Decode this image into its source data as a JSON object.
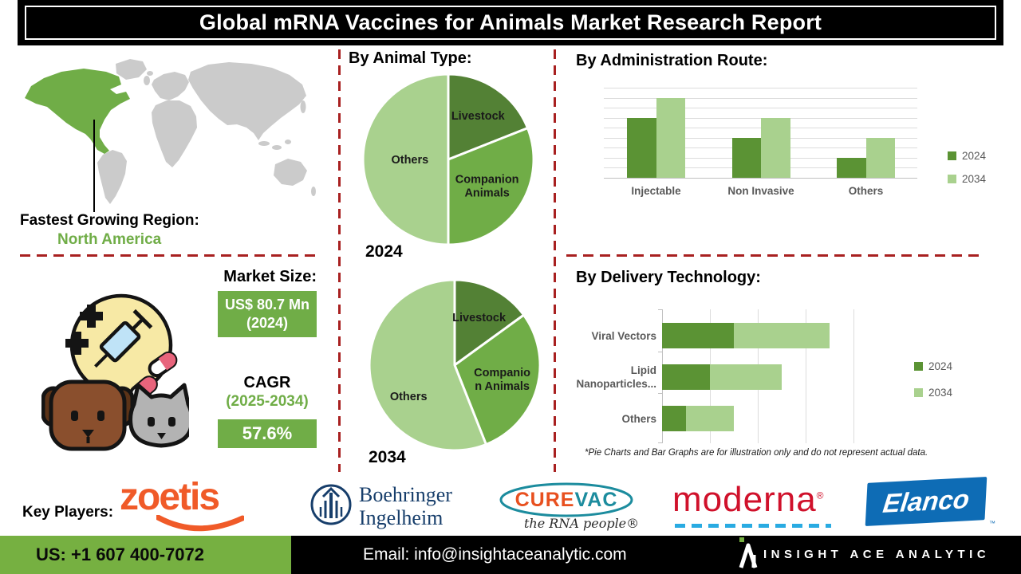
{
  "title": "Global mRNA Vaccines for Animals Market Research Report",
  "map": {
    "highlight_region": "North America",
    "caption_label": "Fastest Growing Region:",
    "caption_value": "North America"
  },
  "market": {
    "label": "Market Size:",
    "size_value": "US$ 80.7 Mn",
    "size_year": "(2024)",
    "cagr_label": "CAGR",
    "cagr_period": "(2025-2034)",
    "cagr_value": "57.6%"
  },
  "sections": {
    "animal_type": "By Animal Type:",
    "admin_route": "By Administration Route:",
    "delivery_tech": "By Delivery Technology:"
  },
  "footnote": "*Pie Charts and Bar Graphs are for illustration only and do not represent actual data.",
  "key_players": {
    "label": "Key Players:",
    "companies": [
      "Zoetis",
      "Boehringer Ingelheim",
      "CureVac",
      "Moderna",
      "Elanco"
    ]
  },
  "logos": {
    "zoetis": "zoetis",
    "boehringer_line1": "Boehringer",
    "boehringer_line2": "Ingelheim",
    "curevac_part1": "CURE",
    "curevac_part2": "VAC",
    "curevac_tagline": "the RNA people®",
    "moderna": "moderna",
    "moderna_reg": "®",
    "elanco": "Elanco",
    "elanco_tm": "™"
  },
  "footer": {
    "phone": "US: +1 607 400-7072",
    "email": "Email: info@insightaceanalytic.com",
    "brand": "INSIGHT ACE ANALYTIC"
  },
  "colors": {
    "accent_green": "#70AD47",
    "dark_green": "#5B9334",
    "pie_dark_green": "#538135",
    "light_green": "#A9D18E",
    "footer_green": "#76B041",
    "dashed_red": "#A82020",
    "zoetis_orange": "#F05A28",
    "boehringer_navy": "#173E6B",
    "curevac_orange": "#E8501F",
    "curevac_teal": "#1C8C9E",
    "moderna_red": "#D0112B",
    "moderna_cyan": "#29ABE2",
    "elanco_blue": "#0E6CB5"
  },
  "chart_data": [
    {
      "id": "animal_type_2024",
      "type": "pie",
      "title": "2024",
      "labels": [
        "Livestock",
        "Companion Animals",
        "Others"
      ],
      "values": [
        19,
        31,
        50
      ],
      "colors": [
        "#538135",
        "#70AD47",
        "#A9D18E"
      ],
      "label_display": [
        [
          "Livestock"
        ],
        [
          "Companion",
          "Animals"
        ],
        [
          "Others"
        ]
      ]
    },
    {
      "id": "animal_type_2034",
      "type": "pie",
      "title": "2034",
      "labels": [
        "Livestock",
        "Companion Animals",
        "Others"
      ],
      "values": [
        15,
        29,
        56
      ],
      "colors": [
        "#538135",
        "#70AD47",
        "#A9D18E"
      ],
      "label_display": [
        [
          "Livestock"
        ],
        [
          "Companio",
          "n Animals"
        ],
        [
          "Others"
        ]
      ]
    },
    {
      "id": "administration_route",
      "type": "bar",
      "title": "By Administration Route:",
      "categories": [
        "Injectable",
        "Non Invasive",
        "Others"
      ],
      "series": [
        {
          "name": "2024",
          "color": "#5B9334",
          "values": [
            30,
            20,
            10
          ]
        },
        {
          "name": "2034",
          "color": "#A9D18E",
          "values": [
            40,
            30,
            20
          ]
        }
      ],
      "ylim": [
        0,
        45
      ],
      "grid": true,
      "legend_position": "right"
    },
    {
      "id": "delivery_technology",
      "type": "bar-horizontal-stacked",
      "title": "By Delivery Technology:",
      "categories": [
        "Viral Vectors",
        "Lipid Nanoparticles...",
        "Others"
      ],
      "category_display": [
        [
          "Viral Vectors"
        ],
        [
          "Lipid",
          "Nanoparticles..."
        ],
        [
          "Others"
        ]
      ],
      "series": [
        {
          "name": "2024",
          "color": "#5B9334",
          "values": [
            30,
            20,
            10
          ]
        },
        {
          "name": "2034",
          "color": "#A9D18E",
          "values": [
            40,
            30,
            20
          ]
        }
      ],
      "xlim": [
        0,
        80
      ],
      "grid": true,
      "legend_position": "right"
    }
  ]
}
